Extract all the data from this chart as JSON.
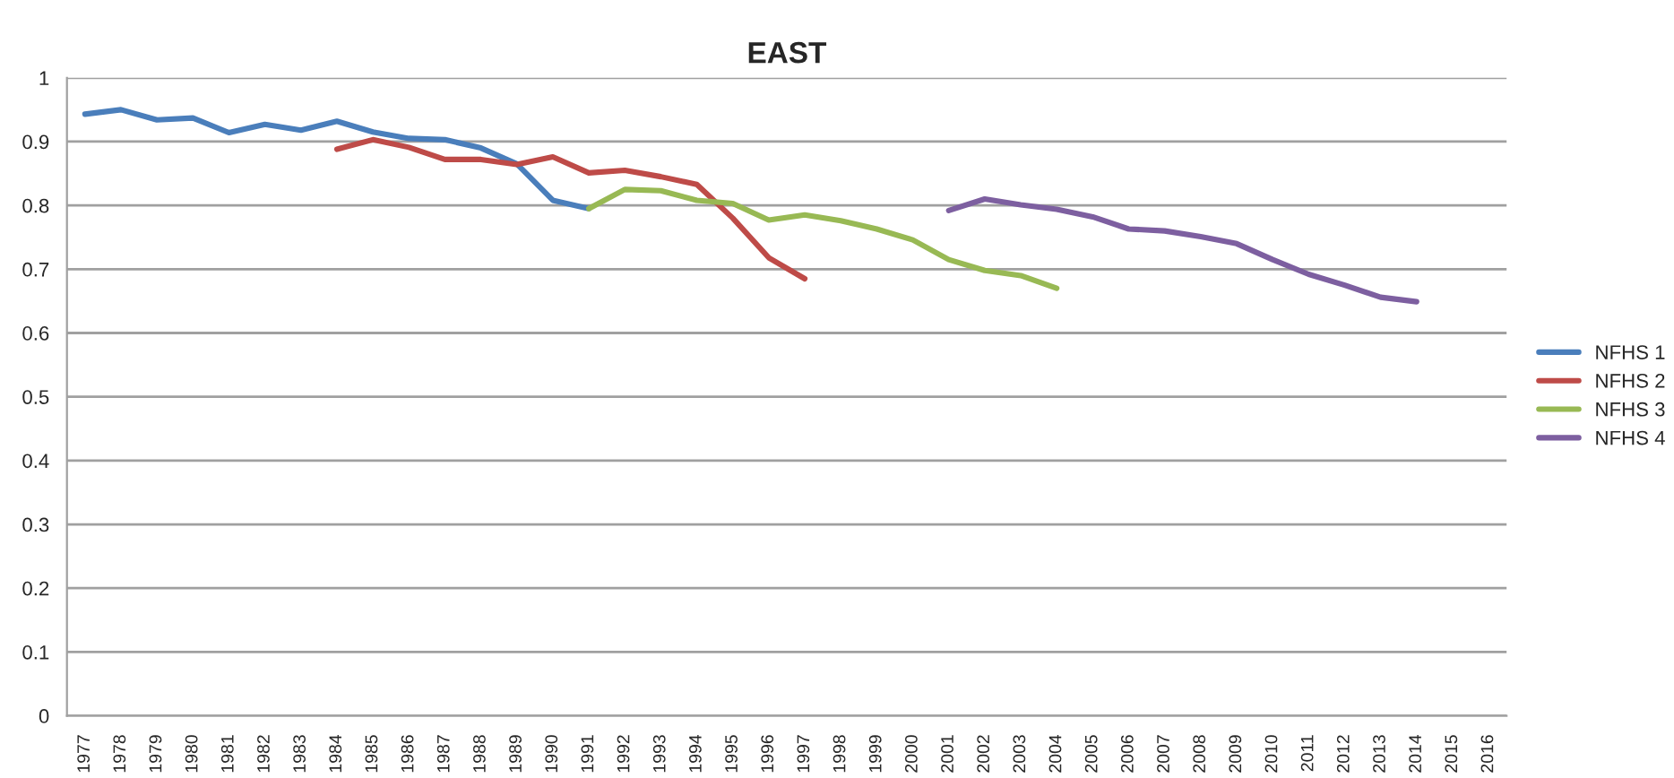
{
  "chart_data": {
    "type": "line",
    "title": "EAST",
    "categories": [
      "1977",
      "1978",
      "1979",
      "1980",
      "1981",
      "1982",
      "1983",
      "1984",
      "1985",
      "1986",
      "1987",
      "1988",
      "1989",
      "1990",
      "1991",
      "1992",
      "1993",
      "1994",
      "1995",
      "1996",
      "1997",
      "1998",
      "1999",
      "2000",
      "2001",
      "2002",
      "2003",
      "2004",
      "2005",
      "2006",
      "2007",
      "2008",
      "2009",
      "2010",
      "2011",
      "2012",
      "2013",
      "2014",
      "2015",
      "2016"
    ],
    "series": [
      {
        "name": "NFHS 1",
        "color": "#4a7ebb",
        "values": [
          0.943,
          0.95,
          0.934,
          0.937,
          0.914,
          0.927,
          0.918,
          0.932,
          0.915,
          0.905,
          0.903,
          0.89,
          0.865,
          0.808,
          0.795,
          null,
          null,
          null,
          null,
          null,
          null,
          null,
          null,
          null,
          null,
          null,
          null,
          null,
          null,
          null,
          null,
          null,
          null,
          null,
          null,
          null,
          null,
          null,
          null,
          null
        ]
      },
      {
        "name": "NFHS 2",
        "color": "#be4b48",
        "values": [
          null,
          null,
          null,
          null,
          null,
          null,
          null,
          0.888,
          0.903,
          0.891,
          0.872,
          0.872,
          0.864,
          0.876,
          0.851,
          0.855,
          0.845,
          0.833,
          0.78,
          0.718,
          0.685,
          null,
          null,
          null,
          null,
          null,
          null,
          null,
          null,
          null,
          null,
          null,
          null,
          null,
          null,
          null,
          null,
          null,
          null,
          null
        ]
      },
      {
        "name": "NFHS 3",
        "color": "#98b954",
        "values": [
          null,
          null,
          null,
          null,
          null,
          null,
          null,
          null,
          null,
          null,
          null,
          null,
          null,
          null,
          0.795,
          0.825,
          0.823,
          0.808,
          0.803,
          0.777,
          0.785,
          0.776,
          0.763,
          0.746,
          0.715,
          0.698,
          0.69,
          0.67,
          null,
          null,
          null,
          null,
          null,
          null,
          null,
          null,
          null,
          null,
          null,
          null
        ]
      },
      {
        "name": "NFHS 4",
        "color": "#7d5fa0",
        "values": [
          null,
          null,
          null,
          null,
          null,
          null,
          null,
          null,
          null,
          null,
          null,
          null,
          null,
          null,
          null,
          null,
          null,
          null,
          null,
          null,
          null,
          null,
          null,
          null,
          0.792,
          0.81,
          0.801,
          0.794,
          0.782,
          0.763,
          0.76,
          0.751,
          0.74,
          0.715,
          0.692,
          0.675,
          0.656,
          0.649,
          null,
          null
        ]
      }
    ],
    "ylim": [
      0,
      1
    ],
    "yticks": [
      {
        "value": 0,
        "label": "0"
      },
      0.1,
      0.2,
      0.3,
      0.4,
      0.5,
      0.6,
      0.7,
      0.8,
      0.9,
      {
        "value": 1,
        "label": "1"
      }
    ],
    "grid": "y",
    "legend": "right",
    "marker": "none",
    "line_style": "solid"
  }
}
